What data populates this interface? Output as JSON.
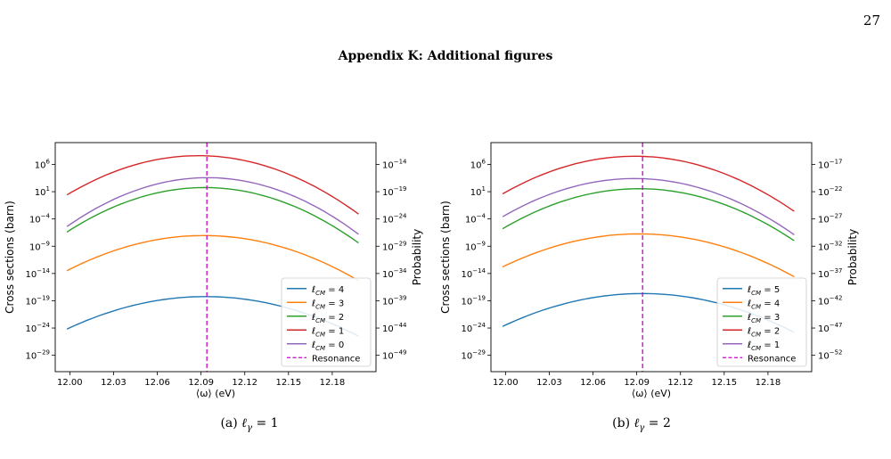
{
  "page_number": "27",
  "section_title": "Appendix K: Additional figures",
  "chart_data": [
    {
      "type": "line",
      "caption": {
        "prefix": "(a)",
        "symbol": "ℓ",
        "subscript": "γ",
        "rest": " = 1"
      },
      "xlabel": "⟨ω⟩ (eV)",
      "ylabel": "Cross sections (barn)",
      "ylabel_right": "Probability",
      "x_ticks": [
        "12.00",
        "12.03",
        "12.06",
        "12.09",
        "12.12",
        "12.15",
        "12.18"
      ],
      "x_tick_values": [
        12.0,
        12.03,
        12.06,
        12.09,
        12.12,
        12.15,
        12.18
      ],
      "xlim": [
        11.99,
        12.21
      ],
      "y_scale": "log",
      "ylim_log10": [
        -32,
        10
      ],
      "y_ticks": [
        {
          "base": "10",
          "exp": "6"
        },
        {
          "base": "10",
          "exp": "1"
        },
        {
          "base": "10",
          "exp": "−4"
        },
        {
          "base": "10",
          "exp": "−9"
        },
        {
          "base": "10",
          "exp": "−14"
        },
        {
          "base": "10",
          "exp": "−19"
        },
        {
          "base": "10",
          "exp": "−24"
        },
        {
          "base": "10",
          "exp": "−29"
        }
      ],
      "y_tick_log10": [
        6,
        1,
        -4,
        -9,
        -14,
        -19,
        -24,
        -29
      ],
      "y2_ticks": [
        {
          "base": "10",
          "exp": "−14"
        },
        {
          "base": "10",
          "exp": "−19"
        },
        {
          "base": "10",
          "exp": "−24"
        },
        {
          "base": "10",
          "exp": "−29"
        },
        {
          "base": "10",
          "exp": "−34"
        },
        {
          "base": "10",
          "exp": "−39"
        },
        {
          "base": "10",
          "exp": "−44"
        },
        {
          "base": "10",
          "exp": "−49"
        }
      ],
      "y2_tick_log10": [
        -14,
        -19,
        -24,
        -29,
        -34,
        -39,
        -44,
        -49
      ],
      "y2_offset_log10": -20,
      "resonance_x": 12.094,
      "legend_position": "lower right",
      "series": [
        {
          "name": "4",
          "color": "#1f77b4",
          "x": [
            11.998,
            12.083,
            12.198
          ],
          "log10_y": [
            -24.2,
            -18.3,
            -25.5
          ]
        },
        {
          "name": "3",
          "color": "#ff7f0e",
          "x": [
            11.998,
            12.083,
            12.198
          ],
          "log10_y": [
            -13.5,
            -7.1,
            -15.3
          ]
        },
        {
          "name": "2",
          "color": "#2ca02c",
          "x": [
            11.998,
            12.085,
            12.198
          ],
          "log10_y": [
            -6.4,
            1.7,
            -8.4
          ]
        },
        {
          "name": "1",
          "color": "#d62728",
          "x": [
            11.998,
            12.088,
            12.198
          ],
          "log10_y": [
            0.4,
            7.6,
            -3.1
          ]
        },
        {
          "name": "0",
          "color": "#9467bd",
          "x": [
            11.998,
            12.086,
            12.198
          ],
          "log10_y": [
            -5.4,
            3.5,
            -6.8
          ]
        }
      ],
      "legend_prefix": "ℓ",
      "legend_sub": "CM",
      "legend_eq": " = ",
      "resonance_label": "Resonance",
      "resonance_color": "#cc00cc"
    },
    {
      "type": "line",
      "caption": {
        "prefix": "(b)",
        "symbol": "ℓ",
        "subscript": "γ",
        "rest": " = 2"
      },
      "xlabel": "⟨ω⟩ (eV)",
      "ylabel": "Cross sections (barn)",
      "ylabel_right": "Probability",
      "x_ticks": [
        "12.00",
        "12.03",
        "12.06",
        "12.09",
        "12.12",
        "12.15",
        "12.18"
      ],
      "x_tick_values": [
        12.0,
        12.03,
        12.06,
        12.09,
        12.12,
        12.15,
        12.18
      ],
      "xlim": [
        11.99,
        12.21
      ],
      "y_scale": "log",
      "ylim_log10": [
        -32,
        10
      ],
      "y_ticks": [
        {
          "base": "10",
          "exp": "6"
        },
        {
          "base": "10",
          "exp": "1"
        },
        {
          "base": "10",
          "exp": "−4"
        },
        {
          "base": "10",
          "exp": "−9"
        },
        {
          "base": "10",
          "exp": "−14"
        },
        {
          "base": "10",
          "exp": "−19"
        },
        {
          "base": "10",
          "exp": "−24"
        },
        {
          "base": "10",
          "exp": "−29"
        }
      ],
      "y_tick_log10": [
        6,
        1,
        -4,
        -9,
        -14,
        -19,
        -24,
        -29
      ],
      "y2_ticks": [
        {
          "base": "10",
          "exp": "−17"
        },
        {
          "base": "10",
          "exp": "−22"
        },
        {
          "base": "10",
          "exp": "−27"
        },
        {
          "base": "10",
          "exp": "−32"
        },
        {
          "base": "10",
          "exp": "−37"
        },
        {
          "base": "10",
          "exp": "−42"
        },
        {
          "base": "10",
          "exp": "−47"
        },
        {
          "base": "10",
          "exp": "−52"
        }
      ],
      "y2_tick_log10": [
        -17,
        -22,
        -27,
        -32,
        -37,
        -42,
        -47,
        -52
      ],
      "y2_offset_log10": -23,
      "resonance_x": 12.094,
      "legend_position": "lower right",
      "series": [
        {
          "name": "5",
          "color": "#1f77b4",
          "x": [
            11.998,
            12.08,
            12.198
          ],
          "log10_y": [
            -23.7,
            -17.8,
            -24.8
          ]
        },
        {
          "name": "4",
          "color": "#ff7f0e",
          "x": [
            11.998,
            12.082,
            12.198
          ],
          "log10_y": [
            -12.8,
            -6.8,
            -14.6
          ]
        },
        {
          "name": "3",
          "color": "#2ca02c",
          "x": [
            11.998,
            12.084,
            12.198
          ],
          "log10_y": [
            -5.8,
            1.5,
            -8.0
          ]
        },
        {
          "name": "2",
          "color": "#d62728",
          "x": [
            11.998,
            12.087,
            12.198
          ],
          "log10_y": [
            0.6,
            7.5,
            -2.6
          ]
        },
        {
          "name": "1",
          "color": "#9467bd",
          "x": [
            11.998,
            12.085,
            12.198
          ],
          "log10_y": [
            -3.6,
            3.4,
            -6.9
          ]
        }
      ],
      "legend_prefix": "ℓ",
      "legend_sub": "CM",
      "legend_eq": " = ",
      "resonance_label": "Resonance",
      "resonance_color": "#cc00cc"
    }
  ]
}
